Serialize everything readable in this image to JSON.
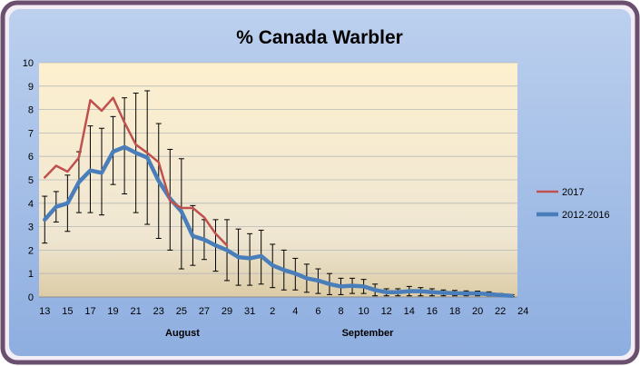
{
  "chart_data": {
    "type": "line",
    "title": "% Canada Warbler",
    "ylim": [
      0,
      10
    ],
    "y_ticks": [
      "0",
      "1",
      "2",
      "3",
      "4",
      "5",
      "6",
      "7",
      "8",
      "9",
      "10"
    ],
    "x_tick_labels": [
      "13",
      "15",
      "17",
      "19",
      "21",
      "23",
      "25",
      "27",
      "29",
      "31",
      "2",
      "4",
      "6",
      "8",
      "10",
      "12",
      "14",
      "16",
      "18",
      "20",
      "22",
      "24"
    ],
    "month_labels": [
      "August",
      "September"
    ],
    "grid": true,
    "legend_position": "right",
    "series": [
      {
        "name": "2017",
        "color": "#c0504d",
        "values": [
          5.1,
          5.6,
          5.35,
          5.95,
          8.4,
          7.95,
          8.5,
          7.45,
          6.5,
          6.15,
          5.75,
          4.1,
          3.8,
          3.8,
          3.4,
          2.7,
          2.2
        ]
      },
      {
        "name": "2012-2016",
        "color": "#4a7ebb",
        "values": [
          3.3,
          3.85,
          4.0,
          4.9,
          5.4,
          5.3,
          6.2,
          6.4,
          6.15,
          5.95,
          4.95,
          4.2,
          3.65,
          2.6,
          2.45,
          2.2,
          2.0,
          1.7,
          1.65,
          1.75,
          1.35,
          1.15,
          1.0,
          0.8,
          0.7,
          0.55,
          0.45,
          0.48,
          0.45,
          0.3,
          0.2,
          0.2,
          0.25,
          0.25,
          0.2,
          0.18,
          0.16,
          0.15,
          0.15,
          0.12,
          0.08,
          0.05
        ]
      }
    ],
    "error_bars": {
      "series": "2012-2016",
      "low": [
        2.3,
        3.2,
        2.8,
        3.6,
        3.6,
        3.5,
        4.8,
        4.4,
        3.6,
        3.1,
        2.5,
        2.0,
        1.2,
        1.35,
        1.6,
        1.1,
        0.7,
        0.5,
        0.5,
        0.55,
        0.4,
        0.3,
        0.3,
        0.2,
        0.15,
        0.1,
        0.1,
        0.15,
        0.15,
        0.05,
        0.05,
        0.05,
        0.05,
        0.05,
        0.05,
        0.05,
        0.05,
        0.05,
        0.05,
        0.05,
        0.02,
        0.01
      ],
      "high": [
        4.3,
        4.5,
        5.2,
        6.2,
        7.3,
        7.2,
        7.7,
        8.5,
        8.7,
        8.8,
        7.4,
        6.3,
        5.9,
        3.9,
        3.3,
        3.3,
        3.3,
        2.9,
        2.7,
        2.85,
        2.25,
        2.0,
        1.65,
        1.4,
        1.2,
        1.0,
        0.8,
        0.8,
        0.75,
        0.55,
        0.35,
        0.35,
        0.45,
        0.4,
        0.35,
        0.3,
        0.28,
        0.26,
        0.25,
        0.22,
        0.15,
        0.1
      ]
    }
  }
}
